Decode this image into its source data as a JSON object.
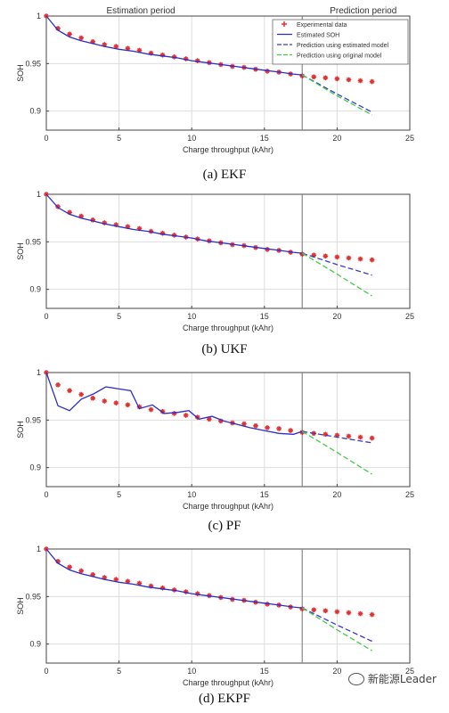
{
  "colors": {
    "experimental": "#e03030",
    "estimated": "#2d2dcc",
    "pred_estimated": "#3a3acc",
    "pred_original": "#44cc44",
    "grid": "#dddddd",
    "divider": "#888888"
  },
  "watermark": "新能源Leader",
  "chart_data": [
    {
      "type": "line",
      "caption": "(a) EKF",
      "period_labels": [
        "Estimation period",
        "Prediction period"
      ],
      "divider_x": 17.6,
      "xlabel": "Charge throughput (kAhr)",
      "ylabel": "SOH",
      "xlim": [
        0,
        25
      ],
      "ylim": [
        0.88,
        1.0
      ],
      "xticks": [
        "0",
        "5",
        "10",
        "15",
        "20",
        "25"
      ],
      "yticks": [
        "0.9",
        "0.95",
        "1"
      ],
      "grid": true,
      "legend_placement": "top-right",
      "legend": [
        "Experimental data",
        "Estimated SOH",
        "Prediction using estimated model",
        "Prediction using original model"
      ],
      "series": [
        {
          "name": "Experimental data",
          "style": "markers",
          "x": [
            0,
            0.8,
            1.6,
            2.4,
            3.2,
            4.0,
            4.8,
            5.6,
            6.4,
            7.2,
            8.0,
            8.8,
            9.6,
            10.4,
            11.2,
            12.0,
            12.8,
            13.6,
            14.4,
            15.2,
            16.0,
            16.8,
            17.6,
            18.4,
            19.2,
            20.0,
            20.8,
            21.6,
            22.4
          ],
          "y": [
            1.0,
            0.987,
            0.981,
            0.977,
            0.973,
            0.97,
            0.968,
            0.966,
            0.964,
            0.961,
            0.959,
            0.957,
            0.955,
            0.953,
            0.951,
            0.949,
            0.947,
            0.946,
            0.944,
            0.942,
            0.941,
            0.939,
            0.937,
            0.936,
            0.935,
            0.934,
            0.933,
            0.932,
            0.931
          ]
        },
        {
          "name": "Estimated SOH",
          "style": "solid",
          "x": [
            0,
            0.8,
            1.6,
            2.4,
            3.2,
            4.0,
            5.0,
            6.0,
            7.0,
            8.0,
            9.0,
            10.0,
            11.0,
            12.0,
            13.0,
            14.0,
            15.0,
            16.0,
            17.0,
            17.6
          ],
          "y": [
            1.0,
            0.985,
            0.978,
            0.974,
            0.971,
            0.968,
            0.965,
            0.963,
            0.96,
            0.958,
            0.956,
            0.953,
            0.951,
            0.949,
            0.947,
            0.945,
            0.943,
            0.941,
            0.939,
            0.938
          ]
        },
        {
          "name": "Prediction using estimated model",
          "style": "dashed",
          "x": [
            17.6,
            20.0,
            22.4
          ],
          "y": [
            0.938,
            0.918,
            0.899
          ]
        },
        {
          "name": "Prediction using original model",
          "style": "dashed",
          "x": [
            17.6,
            20.0,
            22.4
          ],
          "y": [
            0.938,
            0.916,
            0.896
          ]
        }
      ]
    },
    {
      "type": "line",
      "caption": "(b) UKF",
      "divider_x": 17.6,
      "xlabel": "Charge throughput (kAhr)",
      "ylabel": "SOH",
      "xlim": [
        0,
        25
      ],
      "ylim": [
        0.88,
        1.0
      ],
      "xticks": [
        "0",
        "5",
        "10",
        "15",
        "20",
        "25"
      ],
      "yticks": [
        "0.9",
        "0.95",
        "1"
      ],
      "grid": true,
      "series": [
        {
          "name": "Experimental data",
          "style": "markers",
          "x": [
            0,
            0.8,
            1.6,
            2.4,
            3.2,
            4.0,
            4.8,
            5.6,
            6.4,
            7.2,
            8.0,
            8.8,
            9.6,
            10.4,
            11.2,
            12.0,
            12.8,
            13.6,
            14.4,
            15.2,
            16.0,
            16.8,
            17.6,
            18.4,
            19.2,
            20.0,
            20.8,
            21.6,
            22.4
          ],
          "y": [
            1.0,
            0.987,
            0.981,
            0.977,
            0.973,
            0.97,
            0.968,
            0.966,
            0.964,
            0.961,
            0.959,
            0.957,
            0.955,
            0.953,
            0.951,
            0.949,
            0.947,
            0.946,
            0.944,
            0.942,
            0.941,
            0.939,
            0.937,
            0.936,
            0.935,
            0.934,
            0.933,
            0.932,
            0.931
          ]
        },
        {
          "name": "Estimated SOH",
          "style": "solid",
          "x": [
            0,
            0.8,
            1.6,
            2.4,
            3.2,
            4.0,
            5.0,
            6.0,
            7.0,
            8.0,
            9.0,
            10.0,
            11.0,
            12.0,
            13.0,
            14.0,
            15.0,
            16.0,
            17.0,
            17.6
          ],
          "y": [
            1.0,
            0.986,
            0.979,
            0.975,
            0.972,
            0.969,
            0.966,
            0.963,
            0.961,
            0.958,
            0.956,
            0.954,
            0.951,
            0.949,
            0.947,
            0.945,
            0.943,
            0.941,
            0.939,
            0.938
          ]
        },
        {
          "name": "Prediction using estimated model",
          "style": "dashed",
          "x": [
            17.6,
            20.0,
            22.4
          ],
          "y": [
            0.938,
            0.926,
            0.915
          ]
        },
        {
          "name": "Prediction using original model",
          "style": "dashed",
          "x": [
            17.6,
            20.0,
            22.4
          ],
          "y": [
            0.938,
            0.916,
            0.893
          ]
        }
      ]
    },
    {
      "type": "line",
      "caption": "(c) PF",
      "divider_x": 17.6,
      "xlabel": "Charge throughput (kAhr)",
      "ylabel": "SOH",
      "xlim": [
        0,
        25
      ],
      "ylim": [
        0.88,
        1.0
      ],
      "xticks": [
        "0",
        "5",
        "10",
        "15",
        "20",
        "25"
      ],
      "yticks": [
        "0.9",
        "0.95",
        "1"
      ],
      "grid": true,
      "series": [
        {
          "name": "Experimental data",
          "style": "markers",
          "x": [
            0,
            0.8,
            1.6,
            2.4,
            3.2,
            4.0,
            4.8,
            5.6,
            6.4,
            7.2,
            8.0,
            8.8,
            9.6,
            10.4,
            11.2,
            12.0,
            12.8,
            13.6,
            14.4,
            15.2,
            16.0,
            16.8,
            17.6,
            18.4,
            19.2,
            20.0,
            20.8,
            21.6,
            22.4
          ],
          "y": [
            1.0,
            0.987,
            0.981,
            0.977,
            0.973,
            0.97,
            0.968,
            0.966,
            0.964,
            0.961,
            0.959,
            0.957,
            0.955,
            0.953,
            0.951,
            0.949,
            0.947,
            0.946,
            0.944,
            0.942,
            0.941,
            0.939,
            0.937,
            0.936,
            0.935,
            0.934,
            0.933,
            0.932,
            0.931
          ]
        },
        {
          "name": "Estimated SOH",
          "style": "solid",
          "x": [
            0,
            0.8,
            1.6,
            2.4,
            3.3,
            4.1,
            4.9,
            5.8,
            6.4,
            7.3,
            8.1,
            9.0,
            9.8,
            10.5,
            11.4,
            12.2,
            13.0,
            14.0,
            15.0,
            16.0,
            17.0,
            17.6
          ],
          "y": [
            1.0,
            0.965,
            0.96,
            0.972,
            0.978,
            0.985,
            0.983,
            0.981,
            0.962,
            0.966,
            0.957,
            0.958,
            0.96,
            0.951,
            0.954,
            0.949,
            0.946,
            0.942,
            0.939,
            0.936,
            0.935,
            0.938
          ]
        },
        {
          "name": "Prediction using estimated model",
          "style": "dashed",
          "x": [
            17.6,
            20.0,
            22.4
          ],
          "y": [
            0.938,
            0.932,
            0.926
          ]
        },
        {
          "name": "Prediction using original model",
          "style": "dashed",
          "x": [
            17.6,
            20.0,
            22.4
          ],
          "y": [
            0.938,
            0.916,
            0.893
          ]
        }
      ]
    },
    {
      "type": "line",
      "caption": "(d) EKPF",
      "divider_x": 17.6,
      "xlabel": "Charge throughput (kAhr)",
      "ylabel": "SOH",
      "xlim": [
        0,
        25
      ],
      "ylim": [
        0.88,
        1.0
      ],
      "xticks": [
        "0",
        "5",
        "10",
        "15",
        "20",
        "25"
      ],
      "yticks": [
        "0.9",
        "0.95",
        "1"
      ],
      "grid": true,
      "series": [
        {
          "name": "Experimental data",
          "style": "markers",
          "x": [
            0,
            0.8,
            1.6,
            2.4,
            3.2,
            4.0,
            4.8,
            5.6,
            6.4,
            7.2,
            8.0,
            8.8,
            9.6,
            10.4,
            11.2,
            12.0,
            12.8,
            13.6,
            14.4,
            15.2,
            16.0,
            16.8,
            17.6,
            18.4,
            19.2,
            20.0,
            20.8,
            21.6,
            22.4
          ],
          "y": [
            1.0,
            0.987,
            0.981,
            0.977,
            0.973,
            0.97,
            0.968,
            0.966,
            0.964,
            0.961,
            0.959,
            0.957,
            0.955,
            0.953,
            0.951,
            0.949,
            0.947,
            0.946,
            0.944,
            0.942,
            0.941,
            0.939,
            0.937,
            0.936,
            0.935,
            0.934,
            0.933,
            0.932,
            0.931
          ]
        },
        {
          "name": "Estimated SOH",
          "style": "solid",
          "x": [
            0,
            0.8,
            1.6,
            2.4,
            3.2,
            4.0,
            5.0,
            6.0,
            7.0,
            8.0,
            9.0,
            10.0,
            11.0,
            12.0,
            13.0,
            14.0,
            15.0,
            16.0,
            17.0,
            17.6
          ],
          "y": [
            1.0,
            0.985,
            0.978,
            0.974,
            0.971,
            0.968,
            0.965,
            0.963,
            0.96,
            0.958,
            0.956,
            0.953,
            0.951,
            0.949,
            0.947,
            0.945,
            0.943,
            0.941,
            0.939,
            0.938
          ]
        },
        {
          "name": "Prediction using estimated model",
          "style": "dashed",
          "x": [
            17.6,
            20.0,
            22.4
          ],
          "y": [
            0.938,
            0.92,
            0.903
          ]
        },
        {
          "name": "Prediction using original model",
          "style": "dashed",
          "x": [
            17.6,
            20.0,
            22.4
          ],
          "y": [
            0.938,
            0.915,
            0.893
          ]
        }
      ]
    }
  ]
}
